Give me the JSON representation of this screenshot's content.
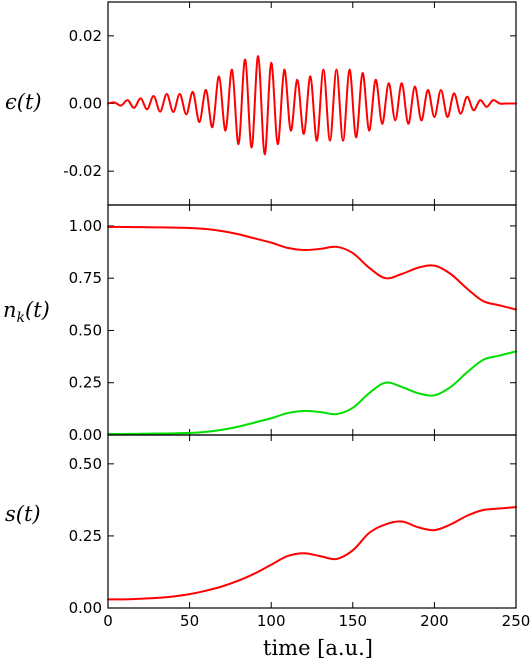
{
  "colors": {
    "red": "#ff0000",
    "green": "#00e000",
    "axis": "#000000"
  },
  "chart_data": [
    {
      "type": "line",
      "ylabel": "ϵ(t)",
      "xlim": [
        0,
        250
      ],
      "ylim": [
        -0.03,
        0.03
      ],
      "yticks": [
        -0.02,
        0.0,
        0.02
      ],
      "ytick_labels": [
        "-0.02",
        "0.00",
        "0.02"
      ],
      "grid": false,
      "series": [
        {
          "color": "#ff0000",
          "x": [
            0,
            4,
            8,
            12,
            16,
            20,
            24,
            28,
            32,
            36,
            40,
            44,
            48,
            52,
            56,
            60,
            64,
            68,
            72,
            76,
            80,
            84,
            88,
            92,
            96,
            100,
            104,
            108,
            112,
            116,
            120,
            124,
            128,
            132,
            136,
            140,
            144,
            148,
            152,
            156,
            160,
            164,
            168,
            172,
            176,
            180,
            184,
            188,
            192,
            196,
            200,
            204,
            208,
            212,
            216,
            220,
            224,
            228,
            232,
            236,
            240,
            244,
            248,
            250
          ],
          "y": [
            0.0,
            0.0003,
            -0.0006,
            0.001,
            -0.0013,
            0.0015,
            -0.0017,
            0.0022,
            -0.0024,
            0.0028,
            -0.0025,
            0.0028,
            -0.0032,
            0.0034,
            -0.0055,
            0.004,
            -0.007,
            0.008,
            -0.008,
            0.01,
            -0.012,
            0.013,
            -0.013,
            0.014,
            -0.015,
            0.012,
            -0.012,
            0.01,
            -0.008,
            0.007,
            -0.009,
            0.008,
            -0.011,
            0.01,
            -0.011,
            0.01,
            -0.011,
            0.01,
            -0.01,
            0.009,
            -0.008,
            0.007,
            -0.006,
            0.006,
            -0.005,
            0.006,
            -0.006,
            0.005,
            -0.005,
            0.004,
            -0.004,
            0.004,
            -0.004,
            0.003,
            -0.003,
            0.002,
            -0.002,
            0.001,
            -0.001,
            0.001,
            0.0,
            0.0,
            0.0,
            0.0
          ]
        }
      ]
    },
    {
      "type": "line",
      "ylabel": "n_k(t)",
      "xlim": [
        0,
        250
      ],
      "ylim": [
        0,
        1.1
      ],
      "yticks": [
        0.0,
        0.25,
        0.5,
        0.75,
        1.0
      ],
      "ytick_labels": [
        "0.00",
        "0.25",
        "0.50",
        "0.75",
        "1.00"
      ],
      "grid": false,
      "series": [
        {
          "color": "#ff0000",
          "x": [
            0,
            10,
            20,
            30,
            40,
            50,
            60,
            70,
            80,
            90,
            100,
            110,
            120,
            130,
            140,
            150,
            160,
            170,
            180,
            190,
            200,
            210,
            220,
            230,
            240,
            250
          ],
          "y": [
            0.995,
            0.995,
            0.994,
            0.993,
            0.992,
            0.99,
            0.985,
            0.975,
            0.96,
            0.94,
            0.92,
            0.895,
            0.885,
            0.89,
            0.9,
            0.87,
            0.8,
            0.75,
            0.77,
            0.8,
            0.81,
            0.77,
            0.7,
            0.64,
            0.62,
            0.6
          ]
        },
        {
          "color": "#00e000",
          "x": [
            0,
            10,
            20,
            30,
            40,
            50,
            60,
            70,
            80,
            90,
            100,
            110,
            120,
            130,
            140,
            150,
            160,
            170,
            180,
            190,
            200,
            210,
            220,
            230,
            240,
            250
          ],
          "y": [
            0.005,
            0.005,
            0.006,
            0.007,
            0.008,
            0.01,
            0.015,
            0.025,
            0.04,
            0.06,
            0.08,
            0.105,
            0.115,
            0.11,
            0.1,
            0.13,
            0.2,
            0.25,
            0.23,
            0.2,
            0.19,
            0.23,
            0.3,
            0.36,
            0.38,
            0.4
          ]
        }
      ]
    },
    {
      "type": "line",
      "ylabel": "s(t)",
      "xlabel": "time [a.u.]",
      "xlim": [
        0,
        250
      ],
      "ylim": [
        0,
        0.6
      ],
      "yticks": [
        0.0,
        0.25,
        0.5
      ],
      "ytick_labels": [
        "0.00",
        "0.25",
        "0.50"
      ],
      "xticks": [
        0,
        50,
        100,
        150,
        200,
        250
      ],
      "xtick_labels": [
        "0",
        "50",
        "100",
        "150",
        "200",
        "250"
      ],
      "grid": false,
      "series": [
        {
          "color": "#ff0000",
          "x": [
            0,
            10,
            20,
            30,
            40,
            50,
            60,
            70,
            80,
            90,
            100,
            110,
            120,
            130,
            140,
            150,
            160,
            170,
            180,
            190,
            200,
            210,
            220,
            230,
            240,
            250
          ],
          "y": [
            0.03,
            0.03,
            0.032,
            0.035,
            0.04,
            0.048,
            0.06,
            0.075,
            0.095,
            0.12,
            0.15,
            0.18,
            0.19,
            0.18,
            0.17,
            0.2,
            0.26,
            0.29,
            0.3,
            0.28,
            0.27,
            0.29,
            0.32,
            0.34,
            0.345,
            0.35
          ]
        }
      ]
    }
  ]
}
